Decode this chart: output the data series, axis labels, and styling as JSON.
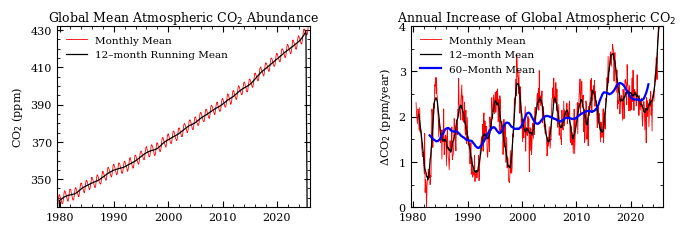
{
  "title_left": "Global Mean Atmospheric CO$_2$ Abundance",
  "title_right": "Annual Increase of Global Atmospheric CO$_2$",
  "ylabel_left": "CO$_2$ (ppm)",
  "ylabel_right": "ΔCO$_2$ (ppm/year)",
  "left_ylim": [
    335,
    432
  ],
  "left_yticks": [
    350,
    370,
    390,
    410,
    430
  ],
  "right_ylim": [
    0,
    4
  ],
  "right_yticks": [
    0,
    1,
    2,
    3,
    4
  ],
  "xlim": [
    1979.5,
    2026
  ],
  "xticks": [
    1980,
    1990,
    2000,
    2010,
    2020
  ],
  "legend_left": [
    "Monthly Mean",
    "12–month Running Mean"
  ],
  "legend_right": [
    "Monthly Mean",
    "12–month Mean",
    "60–Month Mean"
  ],
  "title_fontsize": 9,
  "label_fontsize": 8,
  "tick_fontsize": 8,
  "legend_fontsize": 7.5
}
